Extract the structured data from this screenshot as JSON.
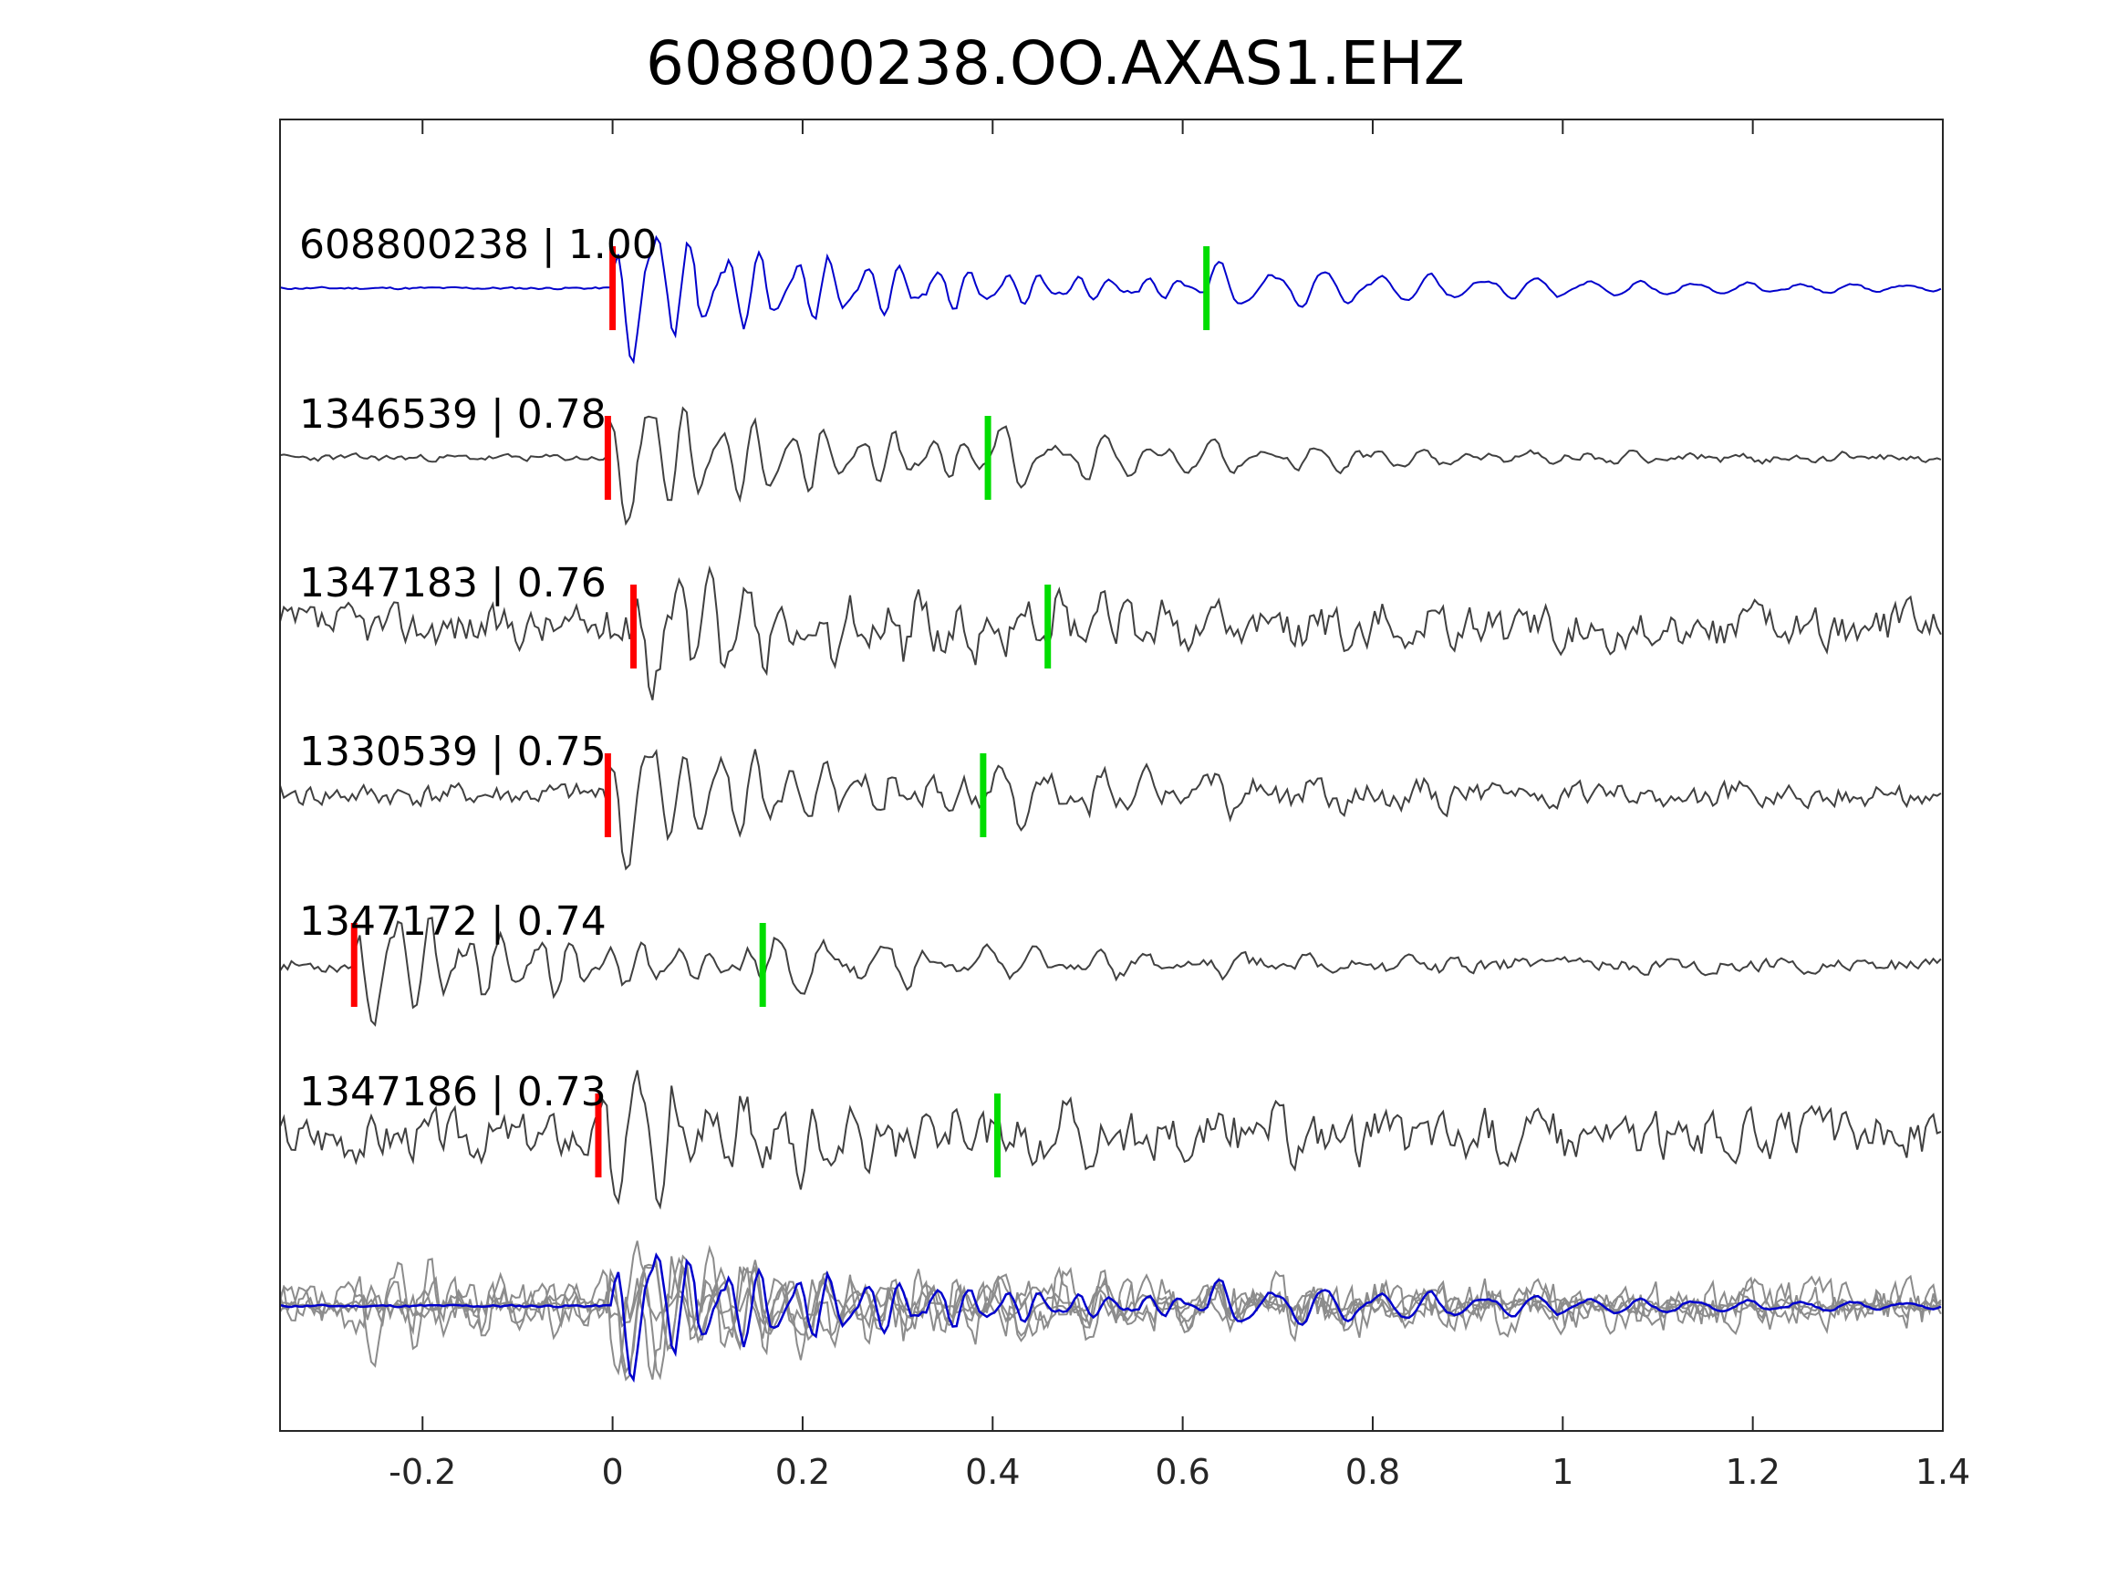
{
  "chart_data": {
    "type": "line",
    "title": "608800238.OO.AXAS1.EHZ",
    "xlabel": "",
    "ylabel": "",
    "xlim": [
      -0.35,
      1.4
    ],
    "xticks": [
      -0.2,
      0,
      0.2,
      0.4,
      0.6,
      0.8,
      1,
      1.2,
      1.4
    ],
    "xtick_labels": [
      "-0.2",
      "0",
      "0.2",
      "0.4",
      "0.6",
      "0.8",
      "1",
      "1.2",
      "1.4"
    ],
    "grid": false,
    "colors": {
      "template": "#0000cc",
      "match": "#404040",
      "overlay": "#8c8c8c",
      "p_pick": "#ff0000",
      "s_pick": "#00dd00",
      "axes": "#262626"
    },
    "series": [
      {
        "name": "608800238 | 1.00",
        "label": "608800238 | 1.00",
        "role": "template",
        "event_id": "608800238",
        "correlation": 1.0,
        "p_pick": 0.0,
        "s_pick": 0.625,
        "amplitude": 1.0,
        "noise": 0.02,
        "seed": 11
      },
      {
        "name": "1346539 | 0.78",
        "label": "1346539 | 0.78",
        "role": "match",
        "event_id": "1346539",
        "correlation": 0.78,
        "p_pick": -0.005,
        "s_pick": 0.395,
        "amplitude": 1.0,
        "noise": 0.06,
        "seed": 23
      },
      {
        "name": "1347183 | 0.76",
        "label": "1347183 | 0.76",
        "role": "match",
        "event_id": "1347183",
        "correlation": 0.76,
        "p_pick": 0.022,
        "s_pick": 0.458,
        "amplitude": 0.95,
        "noise": 0.35,
        "seed": 37
      },
      {
        "name": "1330539 | 0.75",
        "label": "1330539 | 0.75",
        "role": "match",
        "event_id": "1330539",
        "correlation": 0.75,
        "p_pick": -0.005,
        "s_pick": 0.39,
        "amplitude": 1.0,
        "noise": 0.2,
        "seed": 41
      },
      {
        "name": "1347172 | 0.74",
        "label": "1347172 | 0.74",
        "role": "match",
        "event_id": "1347172",
        "correlation": 0.74,
        "p_pick": -0.272,
        "s_pick": 0.158,
        "amplitude": 0.9,
        "noise": 0.12,
        "seed": 53
      },
      {
        "name": "1347186 | 0.73",
        "label": "1347186 | 0.73",
        "role": "match",
        "event_id": "1347186",
        "correlation": 0.73,
        "p_pick": -0.015,
        "s_pick": 0.405,
        "amplitude": 0.9,
        "noise": 0.4,
        "seed": 67
      }
    ],
    "overlay": {
      "description_visible": false,
      "members": [
        "1346539",
        "1347183",
        "1330539",
        "1347172",
        "1347186"
      ],
      "template": "608800238"
    }
  }
}
